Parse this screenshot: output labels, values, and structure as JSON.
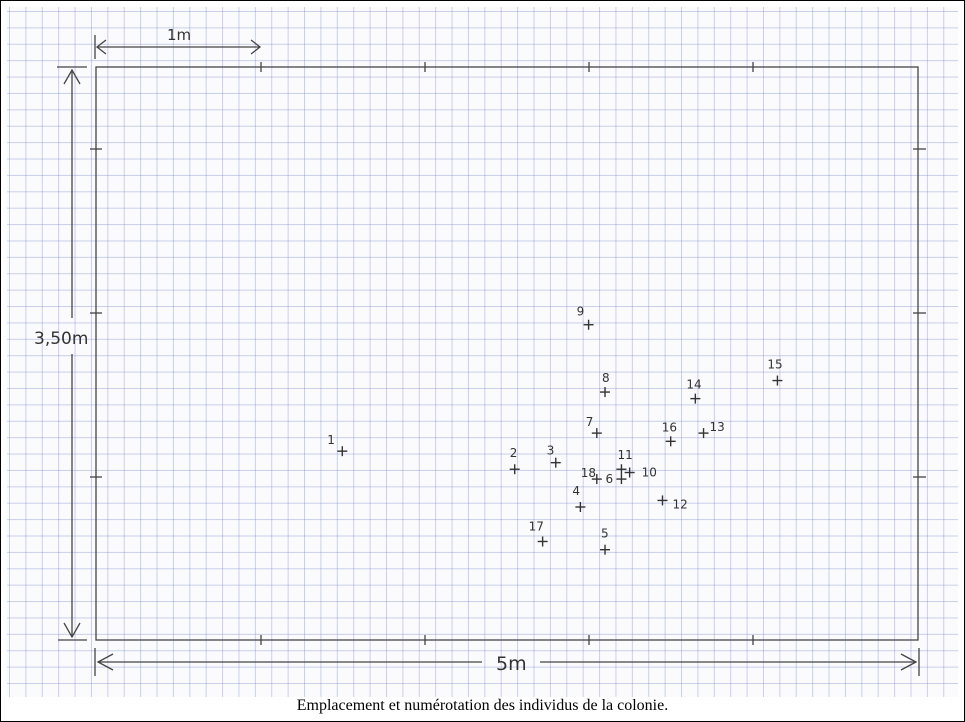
{
  "labels": {
    "scale_width": "1m",
    "height": "3,50m",
    "width": "5m"
  },
  "caption": "Emplacement et numérotation des individus de la colonie.",
  "plot": {
    "width_m": 5,
    "height_m": 3.5
  },
  "individuals": [
    {
      "id": "1",
      "x": 1.5,
      "y": 1.15
    },
    {
      "id": "2",
      "x": 2.55,
      "y": 1.04
    },
    {
      "id": "3",
      "x": 2.8,
      "y": 1.08
    },
    {
      "id": "4",
      "x": 2.95,
      "y": 0.81
    },
    {
      "id": "5",
      "x": 3.1,
      "y": 0.55
    },
    {
      "id": "6",
      "x": 3.2,
      "y": 0.98
    },
    {
      "id": "7",
      "x": 3.05,
      "y": 1.26
    },
    {
      "id": "8",
      "x": 3.1,
      "y": 1.51
    },
    {
      "id": "9",
      "x": 3.0,
      "y": 1.92
    },
    {
      "id": "10",
      "x": 3.25,
      "y": 1.02
    },
    {
      "id": "11",
      "x": 3.2,
      "y": 1.04
    },
    {
      "id": "12",
      "x": 3.45,
      "y": 0.85
    },
    {
      "id": "13",
      "x": 3.7,
      "y": 1.26
    },
    {
      "id": "14",
      "x": 3.65,
      "y": 1.47
    },
    {
      "id": "15",
      "x": 4.15,
      "y": 1.58
    },
    {
      "id": "16",
      "x": 3.5,
      "y": 1.21
    },
    {
      "id": "17",
      "x": 2.72,
      "y": 0.6
    },
    {
      "id": "18",
      "x": 3.05,
      "y": 0.98
    }
  ]
}
